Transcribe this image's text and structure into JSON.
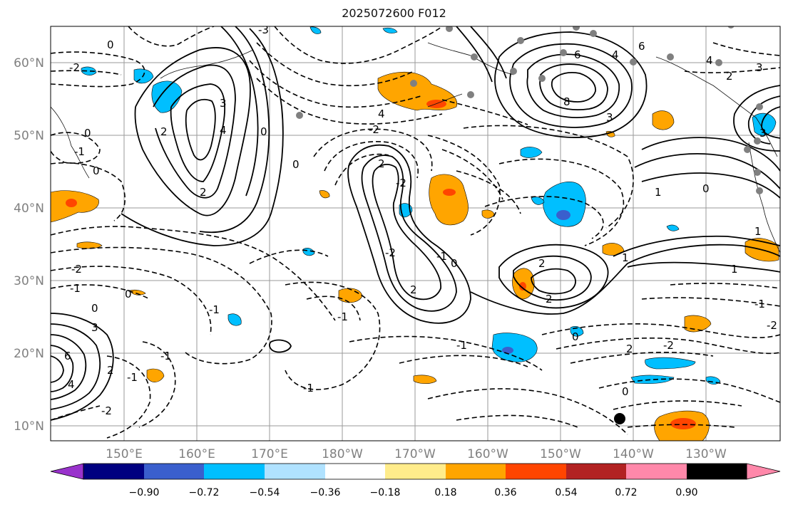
{
  "title": "2025072600 F012",
  "axes": {
    "lat_ticks": [
      "60°N",
      "50°N",
      "40°N",
      "30°N",
      "20°N",
      "10°N"
    ],
    "lon_ticks": [
      "150°E",
      "160°E",
      "170°E",
      "180°W",
      "170°W",
      "160°W",
      "150°W",
      "140°W",
      "130°W"
    ]
  },
  "colorbar": {
    "colors": [
      "#9932cc",
      "#000080",
      "#3a5fcd",
      "#00bfff",
      "#b0e2ff",
      "#ffffff",
      "#ffec8b",
      "#ffa500",
      "#ff4500",
      "#b22222",
      "#ff88aa"
    ],
    "ticks": [
      "−0.90",
      "−0.72",
      "−0.54",
      "−0.36",
      "−0.18",
      "0.18",
      "0.36",
      "0.54",
      "0.72",
      "0.90"
    ]
  },
  "contour_labels": [
    "-3",
    "0",
    "-2",
    "2",
    "3",
    "4",
    "6",
    "8",
    "-1",
    "1"
  ]
}
